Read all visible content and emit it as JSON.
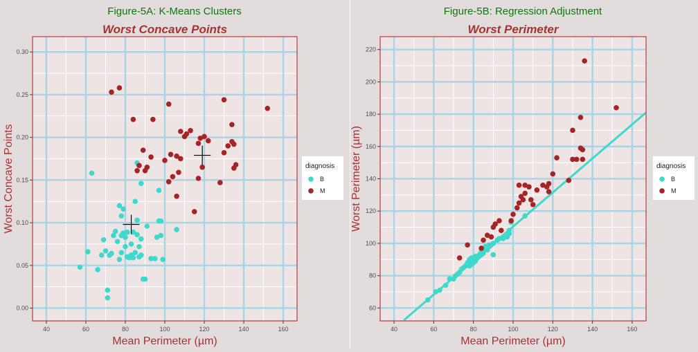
{
  "figures": {
    "left_title": "Figure-5A: K-Means Clusters",
    "right_title": "Figure-5B: Regression Adjustment"
  },
  "colors": {
    "benign": "#3fd8cc",
    "malignant": "#a52525",
    "title_green": "#0b7a0b",
    "label_red": "#a83232",
    "panel_bg": "#efe4e4",
    "grid_major": "#a6d5e6",
    "grid_minor": "#ffffff",
    "border": "#b53a3a",
    "regression_line": "#3fd8cc"
  },
  "chart_data": [
    {
      "type": "scatter",
      "title": "Worst Concave Points",
      "xlabel": "Mean Perimeter (µm)",
      "ylabel": "Worst Concave Points",
      "xlim": [
        33,
        167
      ],
      "ylim": [
        -0.015,
        0.318
      ],
      "xticks": [
        40,
        60,
        80,
        100,
        120,
        140,
        160
      ],
      "yticks": [
        0.0,
        0.05,
        0.1,
        0.15,
        0.2,
        0.25,
        0.3
      ],
      "ytick_labels": [
        "0.00",
        "0.05",
        "0.10",
        "0.15",
        "0.20",
        "0.25",
        "0.30"
      ],
      "legend": {
        "title": "diagnosis",
        "position": "right",
        "entries": [
          "B",
          "M"
        ]
      },
      "centroids": [
        {
          "name": "B",
          "x": 83,
          "y": 0.098
        },
        {
          "name": "M",
          "x": 119,
          "y": 0.179
        }
      ],
      "series": [
        {
          "name": "B",
          "points": [
            [
              57,
              0.048
            ],
            [
              61,
              0.066
            ],
            [
              63,
              0.158
            ],
            [
              66,
              0.045
            ],
            [
              68,
              0.062
            ],
            [
              69,
              0.08
            ],
            [
              70,
              0.067
            ],
            [
              71,
              0.021
            ],
            [
              71,
              0.012
            ],
            [
              72,
              0.062
            ],
            [
              73,
              0.064
            ],
            [
              74,
              0.085
            ],
            [
              75,
              0.09
            ],
            [
              76,
              0.078
            ],
            [
              77,
              0.12
            ],
            [
              77,
              0.057
            ],
            [
              78,
              0.085
            ],
            [
              78,
              0.108
            ],
            [
              78,
              0.065
            ],
            [
              79,
              0.088
            ],
            [
              79,
              0.116
            ],
            [
              80,
              0.072
            ],
            [
              80,
              0.083
            ],
            [
              81,
              0.089
            ],
            [
              81,
              0.06
            ],
            [
              82,
              0.059
            ],
            [
              83,
              0.075
            ],
            [
              83,
              0.062
            ],
            [
              84,
              0.089
            ],
            [
              84,
              0.059
            ],
            [
              85,
              0.065
            ],
            [
              85,
              0.125
            ],
            [
              86,
              0.103
            ],
            [
              86,
              0.086
            ],
            [
              86,
              0.17
            ],
            [
              87,
              0.06
            ],
            [
              87,
              0.072
            ],
            [
              88,
              0.146
            ],
            [
              88,
              0.081
            ],
            [
              88,
              0.062
            ],
            [
              89,
              0.034
            ],
            [
              90,
              0.034
            ],
            [
              91,
              0.096
            ],
            [
              93,
              0.058
            ],
            [
              95,
              0.058
            ],
            [
              96,
              0.083
            ],
            [
              97,
              0.102
            ],
            [
              97,
              0.138
            ],
            [
              98,
              0.102
            ],
            [
              98,
              0.085
            ],
            [
              99,
              0.057
            ],
            [
              106,
              0.092
            ]
          ]
        },
        {
          "name": "M",
          "points": [
            [
              73,
              0.253
            ],
            [
              77,
              0.258
            ],
            [
              84,
              0.221
            ],
            [
              86,
              0.161
            ],
            [
              87,
              0.167
            ],
            [
              89,
              0.185
            ],
            [
              90,
              0.161
            ],
            [
              91,
              0.165
            ],
            [
              93,
              0.177
            ],
            [
              94,
              0.221
            ],
            [
              100,
              0.173
            ],
            [
              102,
              0.239
            ],
            [
              102,
              0.148
            ],
            [
              103,
              0.18
            ],
            [
              104,
              0.154
            ],
            [
              106,
              0.131
            ],
            [
              106,
              0.178
            ],
            [
              107,
              0.159
            ],
            [
              108,
              0.207
            ],
            [
              108,
              0.175
            ],
            [
              110,
              0.201
            ],
            [
              111,
              0.204
            ],
            [
              113,
              0.208
            ],
            [
              115,
              0.113
            ],
            [
              117,
              0.152
            ],
            [
              117,
              0.193
            ],
            [
              118,
              0.199
            ],
            [
              119,
              0.165
            ],
            [
              120,
              0.201
            ],
            [
              122,
              0.196
            ],
            [
              128,
              0.147
            ],
            [
              130,
              0.182
            ],
            [
              130,
              0.244
            ],
            [
              132,
              0.19
            ],
            [
              134,
              0.195
            ],
            [
              134,
              0.215
            ],
            [
              135,
              0.164
            ],
            [
              135,
              0.192
            ],
            [
              136,
              0.168
            ],
            [
              152,
              0.234
            ]
          ]
        }
      ]
    },
    {
      "type": "scatter",
      "title": "Worst Perimeter",
      "xlabel": "Mean Perimeter (µm)",
      "ylabel": "Worst Perimeter (µm)",
      "xlim": [
        33,
        167
      ],
      "ylim": [
        52,
        228
      ],
      "xticks": [
        40,
        60,
        80,
        100,
        120,
        140,
        160
      ],
      "yticks": [
        60,
        80,
        100,
        120,
        140,
        160,
        180,
        200,
        220
      ],
      "ytick_labels": [
        "60",
        "80",
        "100",
        "120",
        "140",
        "160",
        "180",
        "200",
        "220"
      ],
      "legend": {
        "title": "diagnosis",
        "position": "right",
        "entries": [
          "B",
          "M"
        ]
      },
      "regression_line": {
        "x": [
          45,
          167
        ],
        "y": [
          52.5,
          181
        ]
      },
      "series": [
        {
          "name": "B",
          "points": [
            [
              57,
              65
            ],
            [
              61,
              70
            ],
            [
              63,
              71
            ],
            [
              66,
              74
            ],
            [
              68,
              78
            ],
            [
              70,
              78
            ],
            [
              71,
              80
            ],
            [
              72,
              81
            ],
            [
              73,
              82
            ],
            [
              74,
              84
            ],
            [
              75,
              85
            ],
            [
              76,
              86
            ],
            [
              77,
              87
            ],
            [
              77,
              88
            ],
            [
              78,
              86
            ],
            [
              78,
              89
            ],
            [
              78,
              90
            ],
            [
              79,
              87
            ],
            [
              79,
              91
            ],
            [
              80,
              88
            ],
            [
              80,
              90
            ],
            [
              81,
              89
            ],
            [
              81,
              92
            ],
            [
              82,
              91
            ],
            [
              83,
              92
            ],
            [
              83,
              93
            ],
            [
              84,
              93
            ],
            [
              84,
              95
            ],
            [
              85,
              94
            ],
            [
              85,
              96
            ],
            [
              86,
              97
            ],
            [
              86,
              98
            ],
            [
              87,
              96
            ],
            [
              87,
              98
            ],
            [
              88,
              98
            ],
            [
              88,
              99
            ],
            [
              89,
              99
            ],
            [
              90,
              100
            ],
            [
              90,
              93
            ],
            [
              92,
              102
            ],
            [
              93,
              103
            ],
            [
              95,
              103
            ],
            [
              96,
              104
            ],
            [
              97,
              104
            ],
            [
              98,
              106
            ],
            [
              98,
              108
            ],
            [
              99,
              113
            ],
            [
              106,
              117
            ]
          ]
        },
        {
          "name": "M",
          "points": [
            [
              73,
              91
            ],
            [
              77,
              99
            ],
            [
              84,
              97
            ],
            [
              85,
              102
            ],
            [
              87,
              105
            ],
            [
              89,
              104
            ],
            [
              90,
              110
            ],
            [
              91,
              112
            ],
            [
              93,
              114
            ],
            [
              94,
              108
            ],
            [
              99,
              114
            ],
            [
              100,
              118
            ],
            [
              102,
              122
            ],
            [
              103,
              125
            ],
            [
              103,
              136
            ],
            [
              104,
              129
            ],
            [
              105,
              127
            ],
            [
              106,
              131
            ],
            [
              106,
              136
            ],
            [
              108,
              135
            ],
            [
              109,
              127
            ],
            [
              110,
              124
            ],
            [
              112,
              133
            ],
            [
              115,
              136
            ],
            [
              117,
              135
            ],
            [
              118,
              132
            ],
            [
              118,
              137
            ],
            [
              120,
              143
            ],
            [
              122,
              153
            ],
            [
              128,
              139
            ],
            [
              130,
              152
            ],
            [
              130,
              170
            ],
            [
              132,
              152
            ],
            [
              134,
              159
            ],
            [
              134,
              178
            ],
            [
              135,
              152
            ],
            [
              135,
              158
            ],
            [
              136,
              213
            ],
            [
              152,
              184
            ]
          ]
        }
      ]
    }
  ]
}
